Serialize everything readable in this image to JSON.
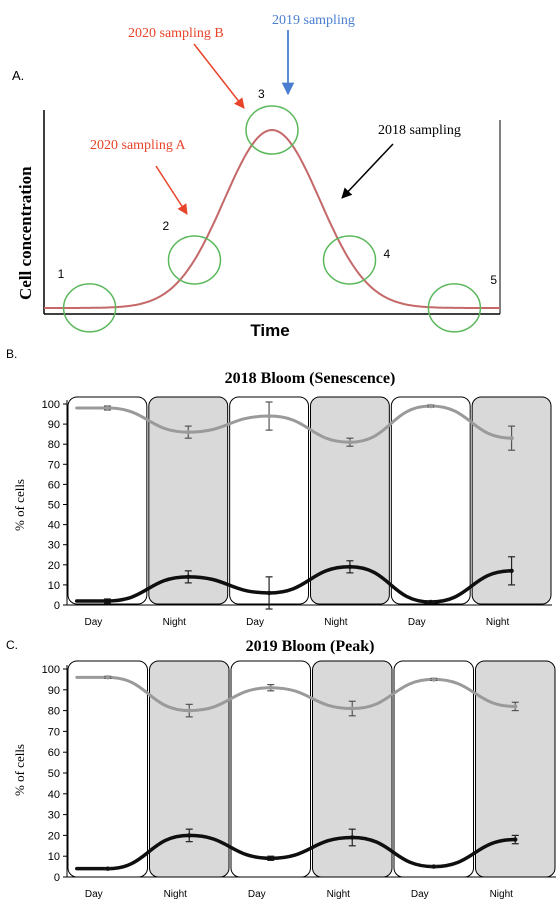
{
  "panel_a": {
    "letter": "A.",
    "ylabel": "Cell concentration",
    "xlabel": "Time",
    "points": [
      {
        "label": "1",
        "t": 0.1
      },
      {
        "label": "2",
        "t": 0.33
      },
      {
        "label": "3",
        "t": 0.5
      },
      {
        "label": "4",
        "t": 0.67
      },
      {
        "label": "5",
        "t": 0.9
      }
    ],
    "annotations": [
      {
        "text": "2020 sampling B",
        "color": "#e8442a"
      },
      {
        "text": "2019 sampling",
        "color": "#4a7fd0"
      },
      {
        "text": "2020 sampling A",
        "color": "#e8442a"
      },
      {
        "text": "2018 sampling",
        "color": "#000000"
      }
    ]
  },
  "chart_data": [
    {
      "type": "line",
      "letter": "B.",
      "title": "2018 Bloom (Senescence)",
      "ylabel": "% of cells",
      "ylim": [
        0,
        100
      ],
      "yticks": [
        0,
        10,
        20,
        30,
        40,
        50,
        60,
        70,
        80,
        90,
        100
      ],
      "categories": [
        "Day",
        "Night",
        "Day",
        "Night",
        "Day",
        "Night"
      ],
      "shading": [
        "day",
        "night",
        "day",
        "night",
        "day",
        "night"
      ],
      "series": [
        {
          "color": "#9a9a9a",
          "values": [
            98,
            86,
            94,
            81,
            99,
            83
          ],
          "errors": [
            1,
            3,
            7,
            2,
            0.5,
            6
          ]
        },
        {
          "color": "#0f0f0f",
          "values": [
            2,
            14,
            6,
            19,
            1.5,
            17
          ],
          "errors": [
            1,
            3,
            8,
            3,
            0.5,
            7
          ]
        }
      ]
    },
    {
      "type": "line",
      "letter": "C.",
      "title": "2019 Bloom (Peak)",
      "ylabel": "% of cells",
      "ylim": [
        0,
        100
      ],
      "yticks": [
        0,
        10,
        20,
        30,
        40,
        50,
        60,
        70,
        80,
        90,
        100
      ],
      "categories": [
        "Day",
        "Night",
        "Day",
        "Night",
        "Day",
        "Night"
      ],
      "shading": [
        "day",
        "night",
        "day",
        "night",
        "day",
        "night"
      ],
      "series": [
        {
          "color": "#9a9a9a",
          "values": [
            96,
            80,
            91,
            81,
            95,
            82
          ],
          "errors": [
            0.5,
            3,
            1.5,
            3.5,
            0.5,
            2
          ]
        },
        {
          "color": "#0f0f0f",
          "values": [
            4,
            20,
            9,
            19,
            5,
            18
          ],
          "errors": [
            0.5,
            3,
            1,
            4,
            0.5,
            2
          ]
        }
      ]
    }
  ]
}
